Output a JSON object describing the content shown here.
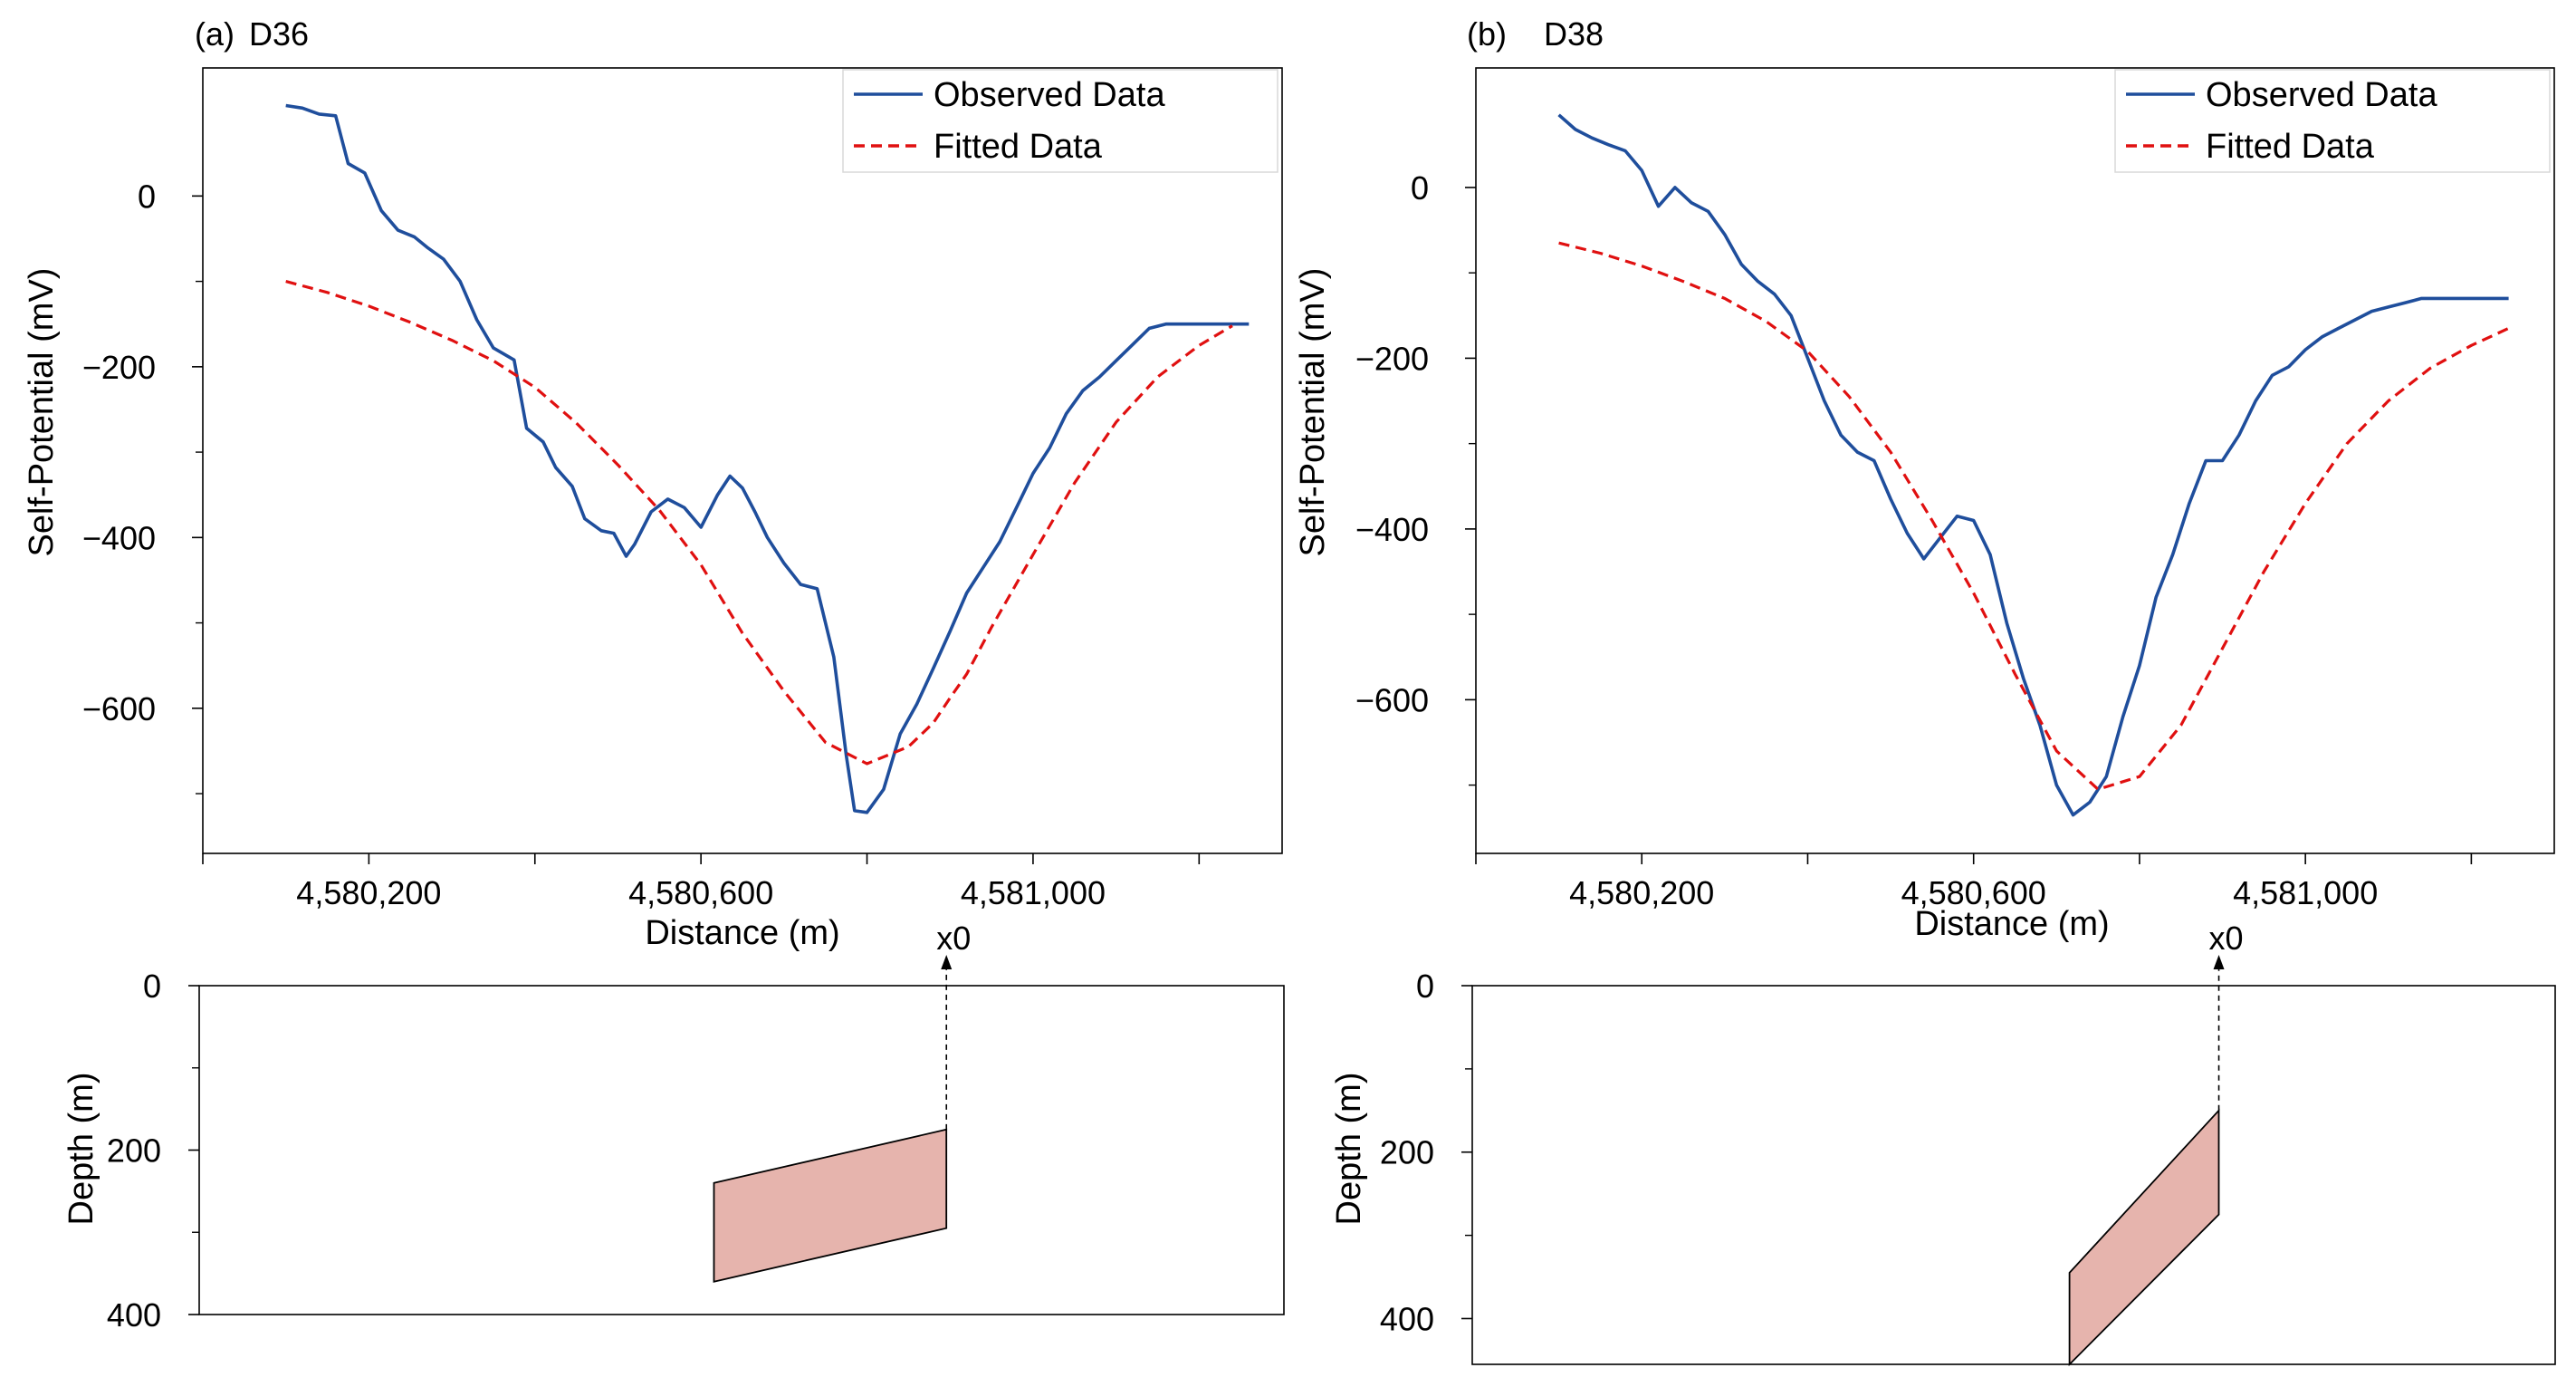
{
  "chart_data": [
    {
      "type": "line",
      "panel": "(a)",
      "title": "D36",
      "xlabel": "Distance (m)",
      "ylabel": "Self-Potential (mV)",
      "xlim": [
        4580000,
        4581300
      ],
      "ylim": [
        -770,
        150
      ],
      "xticks": [
        4580000,
        4580200,
        4580400,
        4580600,
        4580800,
        4581000,
        4581200
      ],
      "xtick_labels": [
        "4,580,200",
        "4,580,600",
        "4,581,000"
      ],
      "xtick_label_values": [
        4580200,
        4580600,
        4581000
      ],
      "yticks": [
        0,
        -200,
        -400,
        -600
      ],
      "ytick_labels": [
        "0",
        "−200",
        "−400",
        "−600"
      ],
      "minor_yticks": [
        -100,
        -300,
        -500,
        -700
      ],
      "legend": [
        "Observed Data",
        "Fitted Data"
      ],
      "series": [
        {
          "name": "Observed Data",
          "color": "#1f4e9c",
          "style": "solid",
          "x": [
            4580100,
            4580120,
            4580140,
            4580160,
            4580175,
            4580195,
            4580215,
            4580235,
            4580255,
            4580270,
            4580290,
            4580310,
            4580330,
            4580350,
            4580375,
            4580390,
            4580410,
            4580425,
            4580445,
            4580460,
            4580480,
            4580495,
            4580510,
            4580520,
            4580540,
            4580560,
            4580580,
            4580600,
            4580620,
            4580635,
            4580650,
            4580665,
            4580680,
            4580700,
            4580720,
            4580740,
            4580760,
            4580775,
            4580785,
            4580800,
            4580820,
            4580840,
            4580860,
            4580880,
            4580900,
            4580920,
            4580940,
            4580960,
            4580985,
            4581000,
            4581020,
            4581040,
            4581060,
            4581080,
            4581100,
            4581120,
            4581140,
            4581160,
            4581175,
            4581195,
            4581215,
            4581240,
            4581260
          ],
          "values": [
            106,
            103,
            96,
            94,
            38,
            27,
            -17,
            -40,
            -48,
            -60,
            -74,
            -100,
            -145,
            -178,
            -192,
            -272,
            -288,
            -318,
            -340,
            -378,
            -392,
            -395,
            -422,
            -408,
            -370,
            -355,
            -365,
            -388,
            -350,
            -328,
            -342,
            -370,
            -400,
            -430,
            -455,
            -460,
            -540,
            -655,
            -720,
            -722,
            -695,
            -630,
            -595,
            -553,
            -510,
            -465,
            -435,
            -405,
            -355,
            -325,
            -295,
            -255,
            -228,
            -212,
            -193,
            -174,
            -155,
            -150,
            -150,
            -150,
            -150,
            -150,
            -150
          ]
        },
        {
          "name": "Fitted Data",
          "color": "#e01010",
          "style": "dashed",
          "x": [
            4580100,
            4580150,
            4580200,
            4580250,
            4580300,
            4580350,
            4580400,
            4580450,
            4580500,
            4580550,
            4580600,
            4580650,
            4580700,
            4580750,
            4580800,
            4580850,
            4580880,
            4580900,
            4580920,
            4580950,
            4581000,
            4581050,
            4581100,
            4581150,
            4581200,
            4581240
          ],
          "values": [
            -100,
            -113,
            -129,
            -148,
            -169,
            -193,
            -224,
            -266,
            -315,
            -368,
            -432,
            -512,
            -580,
            -640,
            -665,
            -645,
            -617,
            -588,
            -560,
            -505,
            -420,
            -336,
            -265,
            -212,
            -175,
            -152
          ]
        }
      ]
    },
    {
      "type": "line",
      "panel": "(b)",
      "title": "D38",
      "xlabel": "Distance (m)",
      "ylabel": "Self-Potential (mV)",
      "xlim": [
        4580000,
        4581300
      ],
      "ylim": [
        -780,
        140
      ],
      "xticks": [
        4580000,
        4580200,
        4580400,
        4580600,
        4580800,
        4581000,
        4581200
      ],
      "xtick_labels": [
        "4,580,200",
        "4,580,600",
        "4,581,000"
      ],
      "xtick_label_values": [
        4580200,
        4580600,
        4581000
      ],
      "yticks": [
        0,
        -200,
        -400,
        -600
      ],
      "ytick_labels": [
        "0",
        "−200",
        "−400",
        "−600"
      ],
      "minor_yticks": [
        -100,
        -300,
        -500,
        -700
      ],
      "legend": [
        "Observed Data",
        "Fitted Data"
      ],
      "series": [
        {
          "name": "Observed Data",
          "color": "#1f4e9c",
          "style": "solid",
          "x": [
            4580100,
            4580120,
            4580140,
            4580160,
            4580180,
            4580200,
            4580220,
            4580240,
            4580260,
            4580280,
            4580300,
            4580320,
            4580340,
            4580360,
            4580380,
            4580400,
            4580420,
            4580440,
            4580460,
            4580480,
            4580500,
            4580520,
            4580540,
            4580560,
            4580580,
            4580600,
            4580620,
            4580640,
            4580660,
            4580680,
            4580700,
            4580720,
            4580740,
            4580760,
            4580780,
            4580800,
            4580820,
            4580840,
            4580860,
            4580880,
            4580900,
            4580920,
            4580940,
            4580960,
            4580980,
            4581000,
            4581020,
            4581040,
            4581060,
            4581080,
            4581100,
            4581120,
            4581140,
            4581160,
            4581180,
            4581200,
            4581220,
            4581245
          ],
          "values": [
            85,
            68,
            58,
            50,
            43,
            20,
            -22,
            0,
            -18,
            -28,
            -55,
            -90,
            -110,
            -125,
            -150,
            -200,
            -250,
            -290,
            -310,
            -320,
            -365,
            -405,
            -435,
            -410,
            -385,
            -390,
            -430,
            -510,
            -575,
            -630,
            -700,
            -735,
            -720,
            -690,
            -620,
            -560,
            -480,
            -430,
            -370,
            -320,
            -320,
            -290,
            -250,
            -220,
            -210,
            -190,
            -175,
            -165,
            -155,
            -145,
            -140,
            -135,
            -130,
            -130,
            -130,
            -130,
            -130,
            -130
          ]
        },
        {
          "name": "Fitted Data",
          "color": "#e01010",
          "style": "dashed",
          "x": [
            4580100,
            4580150,
            4580200,
            4580250,
            4580300,
            4580350,
            4580400,
            4580450,
            4580500,
            4580550,
            4580600,
            4580650,
            4580700,
            4580750,
            4580800,
            4580850,
            4580900,
            4580950,
            4581000,
            4581050,
            4581100,
            4581150,
            4581200,
            4581245
          ],
          "values": [
            -65,
            -77,
            -92,
            -110,
            -130,
            -157,
            -192,
            -245,
            -310,
            -390,
            -475,
            -570,
            -660,
            -705,
            -690,
            -630,
            -540,
            -450,
            -370,
            -300,
            -250,
            -212,
            -185,
            -165
          ]
        }
      ]
    }
  ],
  "depth_panels": [
    {
      "ylabel": "Depth (m)",
      "yticks": [
        0,
        200,
        400
      ],
      "ytick_labels": [
        "0",
        "200",
        "400"
      ],
      "ylim": [
        0,
        400
      ],
      "marker_label": "x0",
      "marker_x": 4580900,
      "body": [
        [
          4580620,
          240
        ],
        [
          4580900,
          175
        ],
        [
          4580900,
          295
        ],
        [
          4580620,
          360
        ]
      ],
      "body_color": "#e6b4ad"
    },
    {
      "ylabel": "Depth (m)",
      "yticks": [
        0,
        200,
        400
      ],
      "ytick_labels": [
        "0",
        "200",
        "400"
      ],
      "ylim": [
        0,
        455
      ],
      "marker_label": "x0",
      "marker_x": 4580900,
      "body": [
        [
          4580720,
          345
        ],
        [
          4580900,
          150
        ],
        [
          4580900,
          275
        ],
        [
          4580720,
          455
        ]
      ],
      "body_color": "#e6b4ad"
    }
  ]
}
